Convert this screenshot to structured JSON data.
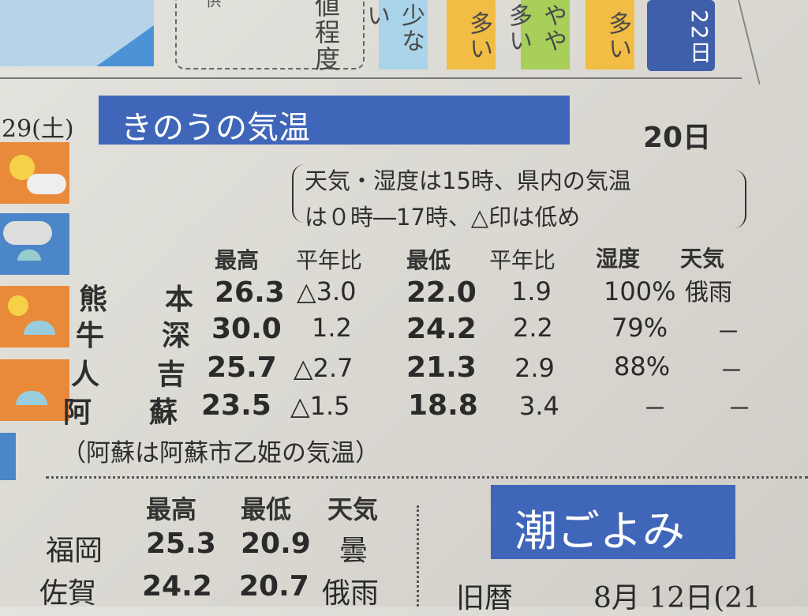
{
  "top_strip": {
    "dashed_box_text_left": "供",
    "dashed_box_text_right": "値程度",
    "badges": [
      {
        "label": "少ない",
        "color": "#a9d4ea"
      },
      {
        "label": "多い",
        "color": "#f2bd45"
      },
      {
        "label": "やや多い",
        "color": "#a8cf5a"
      },
      {
        "label": "多い",
        "color": "#f2bd45"
      },
      {
        "label": "22日",
        "color": "#3f5faa"
      }
    ]
  },
  "side": {
    "date": "29(土)",
    "icons": [
      "sun-cloud-icon",
      "cloud-rain-icon",
      "sun-rain-icon",
      "sun-rain-icon",
      "cloud-icon"
    ]
  },
  "yesterday": {
    "title": "きのうの気温",
    "date": "20日",
    "note_line1": "天気・湿度は15時、県内の気温",
    "note_line2": "は０時―17時、△印は低め",
    "headers": [
      "最高",
      "平年比",
      "最低",
      "平年比",
      "湿度",
      "天気"
    ],
    "rows": [
      {
        "city": [
          "熊",
          "本"
        ],
        "max": "26.3",
        "max_diff": "△3.0",
        "min": "22.0",
        "min_diff": "1.9",
        "humidity": "100%",
        "weather": "俄雨"
      },
      {
        "city": [
          "牛",
          "深"
        ],
        "max": "30.0",
        "max_diff": "1.2",
        "min": "24.2",
        "min_diff": "2.2",
        "humidity": "79%",
        "weather": "－"
      },
      {
        "city": [
          "人",
          "吉"
        ],
        "max": "25.7",
        "max_diff": "△2.7",
        "min": "21.3",
        "min_diff": "2.9",
        "humidity": "88%",
        "weather": "－"
      },
      {
        "city": [
          "阿",
          "蘇"
        ],
        "max": "23.5",
        "max_diff": "△1.5",
        "min": "18.8",
        "min_diff": "3.4",
        "humidity": "－",
        "weather": "－"
      }
    ],
    "footnote": "（阿蘇は阿蘇市乙姫の気温）"
  },
  "other": {
    "headers": [
      "最高",
      "最低",
      "天気"
    ],
    "rows": [
      {
        "city": "福岡",
        "max": "25.3",
        "min": "20.9",
        "weather": "曇"
      },
      {
        "city": "佐賀",
        "max": "24.2",
        "min": "20.7",
        "weather": "俄雨"
      }
    ]
  },
  "tide": {
    "title": "潮ごよみ",
    "label": "旧暦",
    "value": "8月 12日(21"
  }
}
